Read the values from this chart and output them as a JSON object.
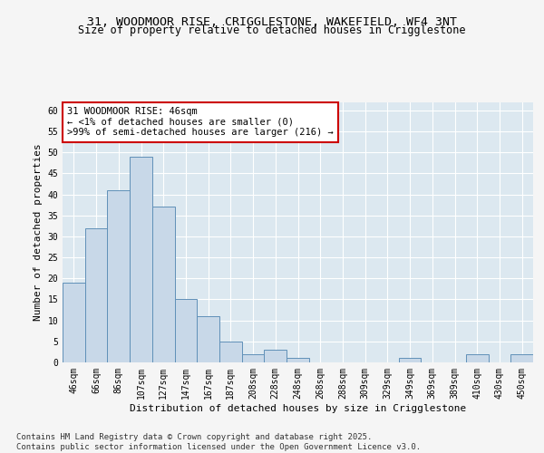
{
  "title_line1": "31, WOODMOOR RISE, CRIGGLESTONE, WAKEFIELD, WF4 3NT",
  "title_line2": "Size of property relative to detached houses in Crigglestone",
  "xlabel": "Distribution of detached houses by size in Crigglestone",
  "ylabel": "Number of detached properties",
  "categories": [
    "46sqm",
    "66sqm",
    "86sqm",
    "107sqm",
    "127sqm",
    "147sqm",
    "167sqm",
    "187sqm",
    "208sqm",
    "228sqm",
    "248sqm",
    "268sqm",
    "288sqm",
    "309sqm",
    "329sqm",
    "349sqm",
    "369sqm",
    "389sqm",
    "410sqm",
    "430sqm",
    "450sqm"
  ],
  "values": [
    19,
    32,
    41,
    49,
    37,
    15,
    11,
    5,
    2,
    3,
    1,
    0,
    0,
    0,
    0,
    1,
    0,
    0,
    2,
    0,
    2
  ],
  "bar_color": "#c8d8e8",
  "bar_edge_color": "#6090b8",
  "annotation_text": "31 WOODMOOR RISE: 46sqm\n← <1% of detached houses are smaller (0)\n>99% of semi-detached houses are larger (216) →",
  "annotation_box_color": "#ffffff",
  "annotation_box_edge_color": "#cc0000",
  "ylim": [
    0,
    62
  ],
  "yticks": [
    0,
    5,
    10,
    15,
    20,
    25,
    30,
    35,
    40,
    45,
    50,
    55,
    60
  ],
  "plot_bg_color": "#dce8f0",
  "grid_color": "#ffffff",
  "fig_bg_color": "#f5f5f5",
  "footer_text": "Contains HM Land Registry data © Crown copyright and database right 2025.\nContains public sector information licensed under the Open Government Licence v3.0.",
  "title_fontsize": 9.5,
  "subtitle_fontsize": 8.5,
  "axis_label_fontsize": 8,
  "tick_fontsize": 7,
  "annotation_fontsize": 7.5,
  "footer_fontsize": 6.5
}
